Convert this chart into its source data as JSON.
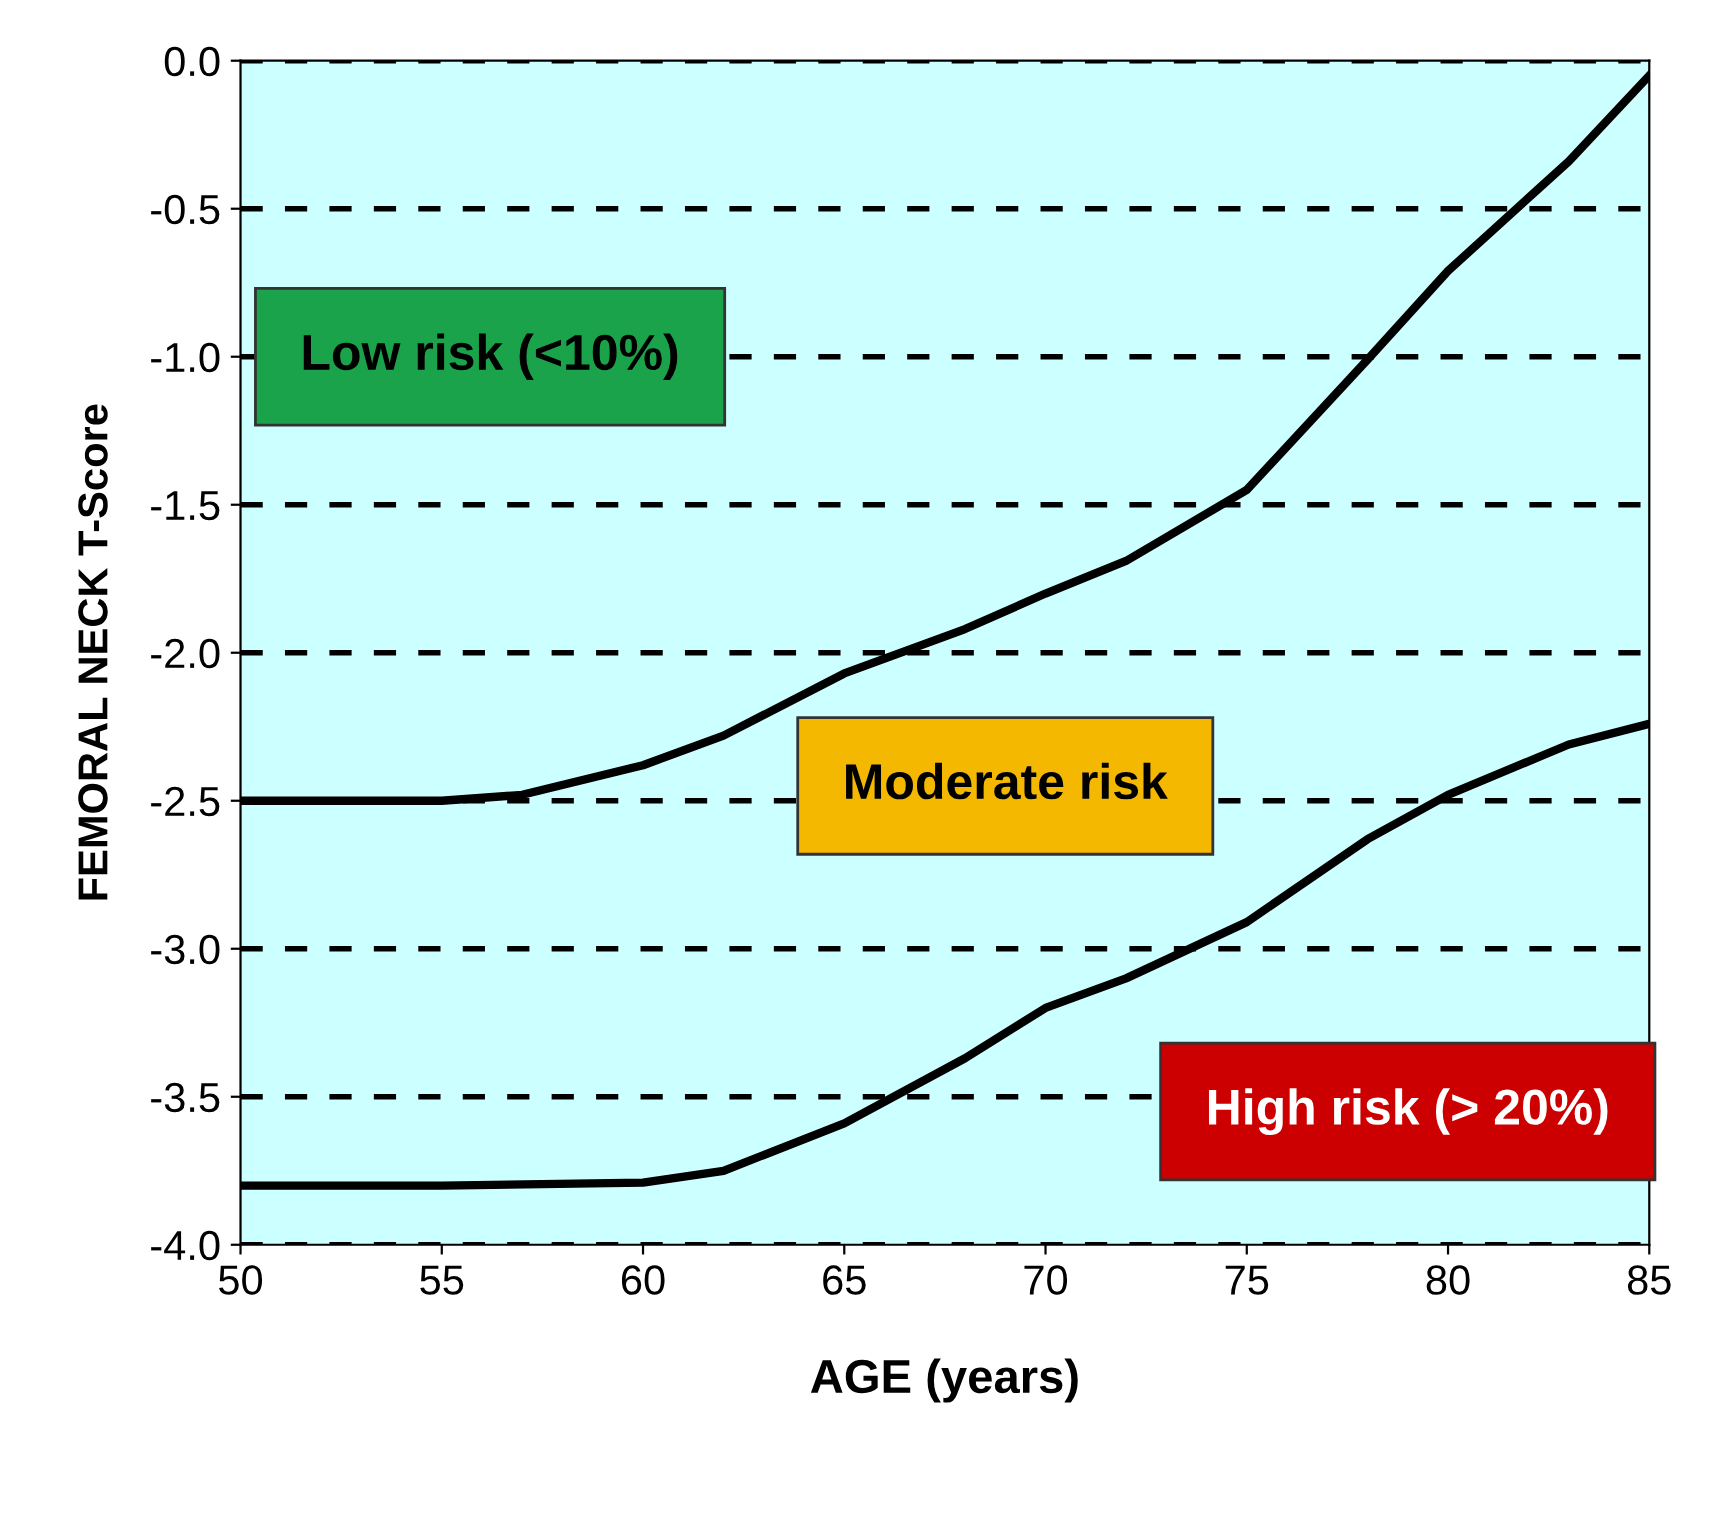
{
  "chart_data": {
    "type": "line",
    "xlabel": "AGE (years)",
    "ylabel": "FEMORAL NECK T-Score",
    "series": [
      {
        "color": "#000000",
        "x": [
          50,
          55,
          57,
          60,
          62,
          65,
          68,
          70,
          72,
          75,
          78,
          80,
          83,
          85
        ],
        "values": [
          -2.5,
          -2.5,
          -2.48,
          -2.38,
          -2.28,
          -2.07,
          -1.92,
          -1.8,
          -1.69,
          -1.45,
          -1.01,
          -0.71,
          -0.34,
          -0.05
        ]
      },
      {
        "color": "#000000",
        "x": [
          50,
          55,
          60,
          62,
          65,
          68,
          70,
          72,
          75,
          78,
          80,
          83,
          85
        ],
        "values": [
          -3.8,
          -3.8,
          -3.79,
          -3.75,
          -3.59,
          -3.37,
          -3.2,
          -3.1,
          -2.91,
          -2.63,
          -2.48,
          -2.31,
          -2.24
        ]
      }
    ],
    "xlim": [
      50,
      85
    ],
    "xticks": [
      50,
      55,
      60,
      65,
      70,
      75,
      80,
      85
    ],
    "ylim": [
      -4,
      0
    ],
    "yticks": [
      {
        "value": -4,
        "label": "-4.0"
      },
      {
        "value": -3.5,
        "label": "-3.5"
      },
      {
        "value": -3,
        "label": "-3.0"
      },
      {
        "value": -2.5,
        "label": "-2.5"
      },
      {
        "value": -2,
        "label": "-2.0"
      },
      {
        "value": -1.5,
        "label": "-1.5"
      },
      {
        "value": -1,
        "label": "-1.0"
      },
      {
        "value": -0.5,
        "label": "-0.5"
      },
      {
        "value": 0,
        "label": "0.0"
      }
    ],
    "grid": "y",
    "line_style": "solid",
    "marker": "none",
    "annotations": [
      "Low risk (<10%)",
      "Moderate risk",
      "High risk (> 20%)"
    ]
  }
}
